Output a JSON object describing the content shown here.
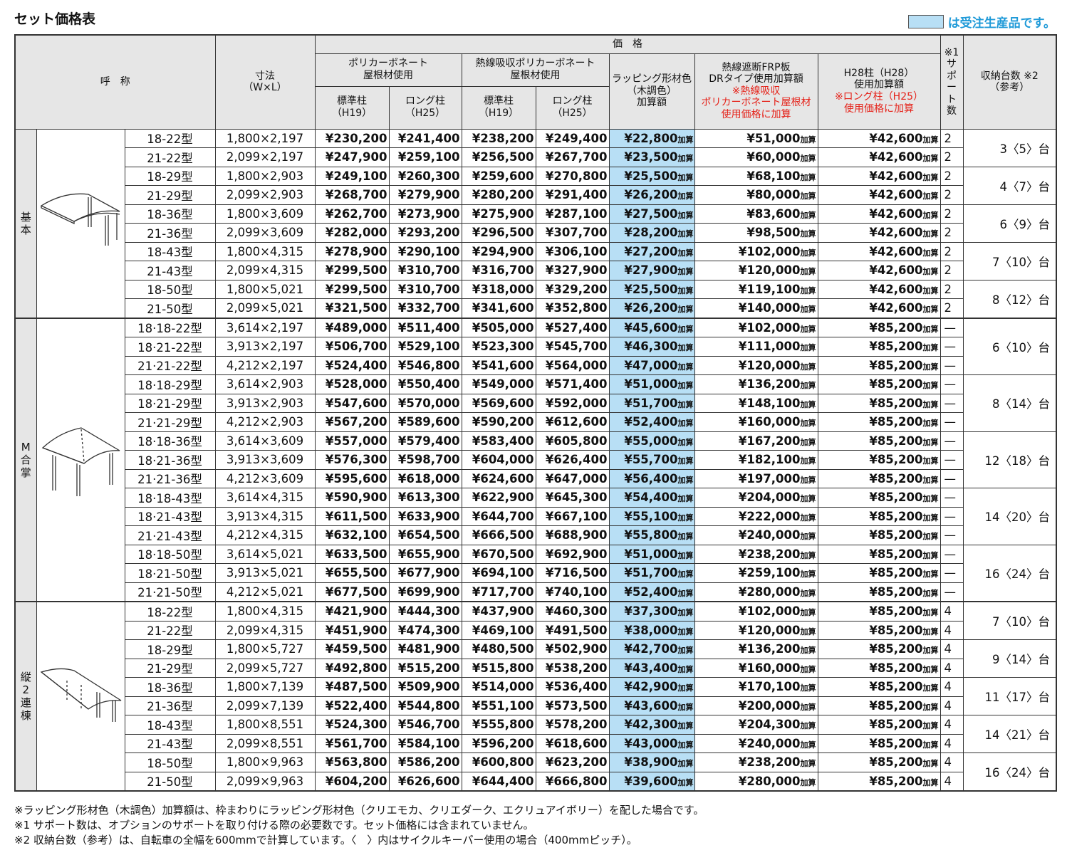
{
  "title": "セット価格表",
  "legend": {
    "text": "は受注生産品です。",
    "swatch_color": "#b8dff5"
  },
  "header": {
    "name": "呼　称",
    "size": [
      "寸法",
      "（W×L）"
    ],
    "price": "価　格",
    "poly": [
      "ポリカーボネート",
      "屋根材使用"
    ],
    "netsu": [
      "熱線吸収ポリカーボネート",
      "屋根材使用"
    ],
    "std": [
      "標準柱",
      "（H19）"
    ],
    "long": [
      "ロング柱",
      "（H25）"
    ],
    "wrap": [
      "ラッピング形材色",
      "（木調色）",
      "加算額"
    ],
    "frp": [
      "熱線遮断FRP板",
      "DRタイプ使用加算額",
      "※熱線吸収",
      "ポリカーボネート屋根材",
      "使用価格に加算"
    ],
    "h28": [
      "H28柱（H28）",
      "使用加算額",
      "※ロング柱（H25）",
      "使用価格に加算"
    ],
    "support": [
      "※1",
      "サ",
      "ポ",
      "ー",
      "ト",
      "数"
    ],
    "capacity": [
      "収納台数 ※2",
      "（参考）"
    ]
  },
  "add_label": "加算",
  "groups": [
    {
      "label": [
        "基",
        "本"
      ],
      "icon": "basic-carport-icon",
      "rows": [
        [
          "18-22型",
          "1,800×2,197",
          "¥230,200",
          "¥241,400",
          "¥238,200",
          "¥249,400",
          "¥22,800",
          "¥51,000",
          "¥42,600",
          "2"
        ],
        [
          "21-22型",
          "2,099×2,197",
          "¥247,900",
          "¥259,100",
          "¥256,500",
          "¥267,700",
          "¥23,500",
          "¥60,000",
          "¥42,600",
          "2"
        ],
        [
          "18-29型",
          "1,800×2,903",
          "¥249,100",
          "¥260,300",
          "¥259,600",
          "¥270,800",
          "¥25,500",
          "¥68,100",
          "¥42,600",
          "2"
        ],
        [
          "21-29型",
          "2,099×2,903",
          "¥268,700",
          "¥279,900",
          "¥280,200",
          "¥291,400",
          "¥26,200",
          "¥80,000",
          "¥42,600",
          "2"
        ],
        [
          "18-36型",
          "1,800×3,609",
          "¥262,700",
          "¥273,900",
          "¥275,900",
          "¥287,100",
          "¥27,500",
          "¥83,600",
          "¥42,600",
          "2"
        ],
        [
          "21-36型",
          "2,099×3,609",
          "¥282,000",
          "¥293,200",
          "¥296,500",
          "¥307,700",
          "¥28,200",
          "¥98,500",
          "¥42,600",
          "2"
        ],
        [
          "18-43型",
          "1,800×4,315",
          "¥278,900",
          "¥290,100",
          "¥294,900",
          "¥306,100",
          "¥27,200",
          "¥102,000",
          "¥42,600",
          "2"
        ],
        [
          "21-43型",
          "2,099×4,315",
          "¥299,500",
          "¥310,700",
          "¥316,700",
          "¥327,900",
          "¥27,900",
          "¥120,000",
          "¥42,600",
          "2"
        ],
        [
          "18-50型",
          "1,800×5,021",
          "¥299,500",
          "¥310,700",
          "¥318,000",
          "¥329,200",
          "¥25,500",
          "¥119,100",
          "¥42,600",
          "2"
        ],
        [
          "21-50型",
          "2,099×5,021",
          "¥321,500",
          "¥332,700",
          "¥341,600",
          "¥352,800",
          "¥26,200",
          "¥140,000",
          "¥42,600",
          "2"
        ]
      ],
      "capacity": [
        {
          "text": "3〈5〉台",
          "span": 2
        },
        {
          "text": "4〈7〉台",
          "span": 2
        },
        {
          "text": "6〈9〉台",
          "span": 2
        },
        {
          "text": "7〈10〉台",
          "span": 2
        },
        {
          "text": "8〈12〉台",
          "span": 2
        }
      ]
    },
    {
      "label": [
        "M",
        "合",
        "掌"
      ],
      "icon": "m-gassho-carport-icon",
      "rows": [
        [
          "18·18-22型",
          "3,614×2,197",
          "¥489,000",
          "¥511,400",
          "¥505,000",
          "¥527,400",
          "¥45,600",
          "¥102,000",
          "¥85,200",
          "—"
        ],
        [
          "18·21-22型",
          "3,913×2,197",
          "¥506,700",
          "¥529,100",
          "¥523,300",
          "¥545,700",
          "¥46,300",
          "¥111,000",
          "¥85,200",
          "—"
        ],
        [
          "21·21-22型",
          "4,212×2,197",
          "¥524,400",
          "¥546,800",
          "¥541,600",
          "¥564,000",
          "¥47,000",
          "¥120,000",
          "¥85,200",
          "—"
        ],
        [
          "18·18-29型",
          "3,614×2,903",
          "¥528,000",
          "¥550,400",
          "¥549,000",
          "¥571,400",
          "¥51,000",
          "¥136,200",
          "¥85,200",
          "—"
        ],
        [
          "18·21-29型",
          "3,913×2,903",
          "¥547,600",
          "¥570,000",
          "¥569,600",
          "¥592,000",
          "¥51,700",
          "¥148,100",
          "¥85,200",
          "—"
        ],
        [
          "21·21-29型",
          "4,212×2,903",
          "¥567,200",
          "¥589,600",
          "¥590,200",
          "¥612,600",
          "¥52,400",
          "¥160,000",
          "¥85,200",
          "—"
        ],
        [
          "18·18-36型",
          "3,614×3,609",
          "¥557,000",
          "¥579,400",
          "¥583,400",
          "¥605,800",
          "¥55,000",
          "¥167,200",
          "¥85,200",
          "—"
        ],
        [
          "18·21-36型",
          "3,913×3,609",
          "¥576,300",
          "¥598,700",
          "¥604,000",
          "¥626,400",
          "¥55,700",
          "¥182,100",
          "¥85,200",
          "—"
        ],
        [
          "21·21-36型",
          "4,212×3,609",
          "¥595,600",
          "¥618,000",
          "¥624,600",
          "¥647,000",
          "¥56,400",
          "¥197,000",
          "¥85,200",
          "—"
        ],
        [
          "18·18-43型",
          "3,614×4,315",
          "¥590,900",
          "¥613,300",
          "¥622,900",
          "¥645,300",
          "¥54,400",
          "¥204,000",
          "¥85,200",
          "—"
        ],
        [
          "18·21-43型",
          "3,913×4,315",
          "¥611,500",
          "¥633,900",
          "¥644,700",
          "¥667,100",
          "¥55,100",
          "¥222,000",
          "¥85,200",
          "—"
        ],
        [
          "21·21-43型",
          "4,212×4,315",
          "¥632,100",
          "¥654,500",
          "¥666,500",
          "¥688,900",
          "¥55,800",
          "¥240,000",
          "¥85,200",
          "—"
        ],
        [
          "18·18-50型",
          "3,614×5,021",
          "¥633,500",
          "¥655,900",
          "¥670,500",
          "¥692,900",
          "¥51,000",
          "¥238,200",
          "¥85,200",
          "—"
        ],
        [
          "18·21-50型",
          "3,913×5,021",
          "¥655,500",
          "¥677,900",
          "¥694,100",
          "¥716,500",
          "¥51,700",
          "¥259,100",
          "¥85,200",
          "—"
        ],
        [
          "21·21-50型",
          "4,212×5,021",
          "¥677,500",
          "¥699,900",
          "¥717,700",
          "¥740,100",
          "¥52,400",
          "¥280,000",
          "¥85,200",
          "—"
        ]
      ],
      "capacity": [
        {
          "text": "6〈10〉台",
          "span": 3
        },
        {
          "text": "8〈14〉台",
          "span": 3
        },
        {
          "text": "12〈18〉台",
          "span": 3
        },
        {
          "text": "14〈20〉台",
          "span": 3
        },
        {
          "text": "16〈24〉台",
          "span": 3
        }
      ]
    },
    {
      "label": [
        "縦",
        "2",
        "連",
        "棟"
      ],
      "icon": "tandem-carport-icon",
      "rows": [
        [
          "18-22型",
          "1,800×4,315",
          "¥421,900",
          "¥444,300",
          "¥437,900",
          "¥460,300",
          "¥37,300",
          "¥102,000",
          "¥85,200",
          "4"
        ],
        [
          "21-22型",
          "2,099×4,315",
          "¥451,900",
          "¥474,300",
          "¥469,100",
          "¥491,500",
          "¥38,000",
          "¥120,000",
          "¥85,200",
          "4"
        ],
        [
          "18-29型",
          "1,800×5,727",
          "¥459,500",
          "¥481,900",
          "¥480,500",
          "¥502,900",
          "¥42,700",
          "¥136,200",
          "¥85,200",
          "4"
        ],
        [
          "21-29型",
          "2,099×5,727",
          "¥492,800",
          "¥515,200",
          "¥515,800",
          "¥538,200",
          "¥43,400",
          "¥160,000",
          "¥85,200",
          "4"
        ],
        [
          "18-36型",
          "1,800×7,139",
          "¥487,500",
          "¥509,900",
          "¥514,000",
          "¥536,400",
          "¥42,900",
          "¥170,100",
          "¥85,200",
          "4"
        ],
        [
          "21-36型",
          "2,099×7,139",
          "¥522,400",
          "¥544,800",
          "¥551,100",
          "¥573,500",
          "¥43,600",
          "¥200,000",
          "¥85,200",
          "4"
        ],
        [
          "18-43型",
          "1,800×8,551",
          "¥524,300",
          "¥546,700",
          "¥555,800",
          "¥578,200",
          "¥42,300",
          "¥204,300",
          "¥85,200",
          "4"
        ],
        [
          "21-43型",
          "2,099×8,551",
          "¥561,700",
          "¥584,100",
          "¥596,200",
          "¥618,600",
          "¥43,000",
          "¥240,000",
          "¥85,200",
          "4"
        ],
        [
          "18-50型",
          "1,800×9,963",
          "¥563,800",
          "¥586,200",
          "¥600,800",
          "¥623,200",
          "¥38,900",
          "¥238,200",
          "¥85,200",
          "4"
        ],
        [
          "21-50型",
          "2,099×9,963",
          "¥604,200",
          "¥626,600",
          "¥644,400",
          "¥666,800",
          "¥39,600",
          "¥280,000",
          "¥85,200",
          "4"
        ]
      ],
      "capacity": [
        {
          "text": "7〈10〉台",
          "span": 2
        },
        {
          "text": "9〈14〉台",
          "span": 2
        },
        {
          "text": "11〈17〉台",
          "span": 2
        },
        {
          "text": "14〈21〉台",
          "span": 2
        },
        {
          "text": "16〈24〉台",
          "span": 2
        }
      ]
    }
  ],
  "notes": [
    "※ラッピング形材色（木調色）加算額は、枠まわりにラッピング形材色（クリエモカ、クリエダーク、エクリュアイボリー）を配した場合です。",
    "※1 サポート数は、オプションのサポートを取り付ける際の必要数です。セット価格には含まれていません。",
    "※2 収納台数（参考）は、自転車の全幅を600mmで計算しています。〈　〉内はサイクルキーパー使用の場合（400mmピッチ）。"
  ]
}
